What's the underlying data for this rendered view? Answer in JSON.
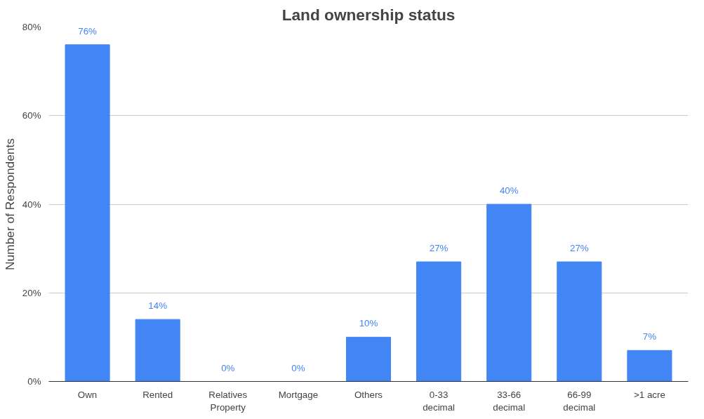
{
  "chart_data": {
    "type": "bar",
    "title": "Land ownership status",
    "ylabel": "Number of Respondents",
    "categories": [
      "Own",
      "Rented",
      "Relatives\nProperty",
      "Mortgage",
      "Others",
      "0-33\ndecimal",
      "33-66\ndecimal",
      "66-99\ndecimal",
      ">1 acre"
    ],
    "values": [
      76,
      14,
      0,
      0,
      10,
      27,
      40,
      27,
      7
    ],
    "value_labels": [
      "76%",
      "14%",
      "0%",
      "0%",
      "10%",
      "27%",
      "40%",
      "27%",
      "7%"
    ],
    "color": "#4285f4",
    "ylim": [
      0,
      80
    ],
    "yticks": [
      {
        "value": 0,
        "label": "0%"
      },
      {
        "value": 20,
        "label": "20%"
      },
      {
        "value": 40,
        "label": "40%"
      },
      {
        "value": 60,
        "label": "60%"
      },
      {
        "value": 80,
        "label": "80%"
      }
    ],
    "grid": "y"
  }
}
